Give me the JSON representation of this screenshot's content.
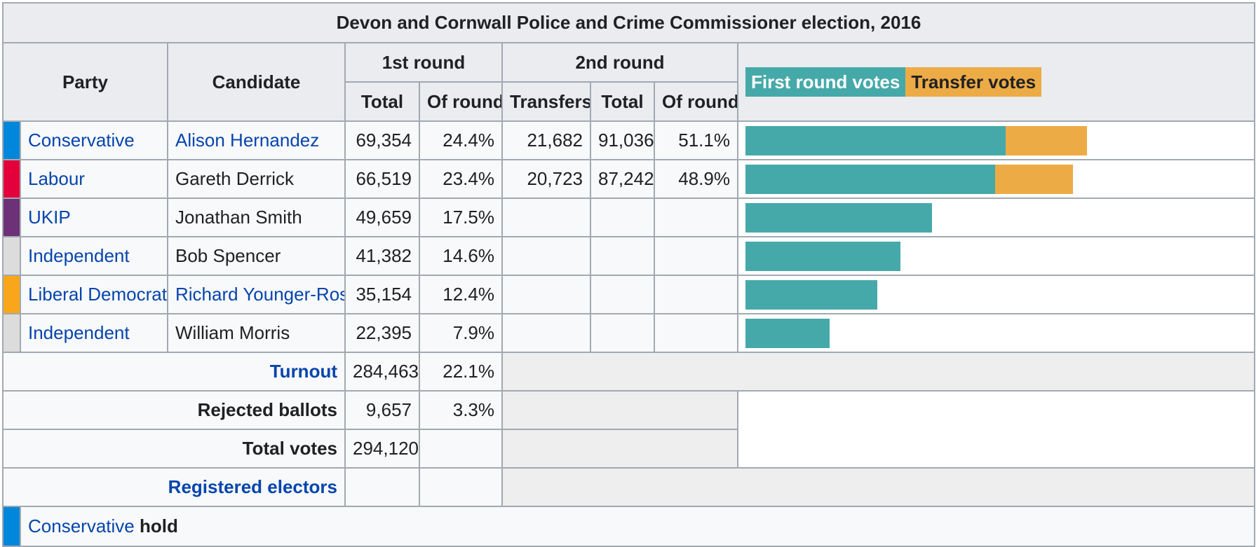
{
  "title": "Devon and Cornwall Police and Crime Commissioner election, 2016",
  "headers": {
    "party": "Party",
    "candidate": "Candidate",
    "round1": "1st round",
    "round2": "2nd round",
    "total": "Total",
    "of_round": "Of round",
    "transfers": "Transfers",
    "total2": "Total",
    "of_round2": "Of round"
  },
  "legend": {
    "first": "First round votes",
    "transfer": "Transfer votes"
  },
  "colors": {
    "first_bar": "#46a9a9",
    "transfer_bar": "#edab46"
  },
  "bar_scale_max": 91036,
  "rows": [
    {
      "color": "#0087dc",
      "party": "Conservative",
      "party_link": true,
      "candidate": "Alison Hernandez",
      "candidate_link": true,
      "r1_total": "69,354",
      "r1_pct": "24.4%",
      "transfers": "21,682",
      "r2_total": "91,036",
      "r2_pct": "51.1%",
      "first_votes": 69354,
      "transfer_votes": 21682
    },
    {
      "color": "#e4003b",
      "party": "Labour",
      "party_link": true,
      "candidate": "Gareth Derrick",
      "candidate_link": false,
      "r1_total": "66,519",
      "r1_pct": "23.4%",
      "transfers": "20,723",
      "r2_total": "87,242",
      "r2_pct": "48.9%",
      "first_votes": 66519,
      "transfer_votes": 20723
    },
    {
      "color": "#6d3177",
      "party": "UKIP",
      "party_link": true,
      "candidate": "Jonathan Smith",
      "candidate_link": false,
      "r1_total": "49,659",
      "r1_pct": "17.5%",
      "transfers": "",
      "r2_total": "",
      "r2_pct": "",
      "first_votes": 49659,
      "transfer_votes": 0
    },
    {
      "color": "#dcdcdc",
      "party": "Independent",
      "party_link": true,
      "candidate": "Bob Spencer",
      "candidate_link": false,
      "r1_total": "41,382",
      "r1_pct": "14.6%",
      "transfers": "",
      "r2_total": "",
      "r2_pct": "",
      "first_votes": 41382,
      "transfer_votes": 0
    },
    {
      "color": "#faa61a",
      "party": "Liberal Democrats",
      "party_link": true,
      "candidate": "Richard Younger-Ross",
      "candidate_link": true,
      "r1_total": "35,154",
      "r1_pct": "12.4%",
      "transfers": "",
      "r2_total": "",
      "r2_pct": "",
      "first_votes": 35154,
      "transfer_votes": 0
    },
    {
      "color": "#dcdcdc",
      "party": "Independent",
      "party_link": true,
      "candidate": "William Morris",
      "candidate_link": false,
      "r1_total": "22,395",
      "r1_pct": "7.9%",
      "transfers": "",
      "r2_total": "",
      "r2_pct": "",
      "first_votes": 22395,
      "transfer_votes": 0
    }
  ],
  "turnout": {
    "label": "Turnout",
    "total": "284,463",
    "pct": "22.1%"
  },
  "rejected": {
    "label": "Rejected ballots",
    "total": "9,657",
    "pct": "3.3%"
  },
  "total_votes": {
    "label": "Total votes",
    "total": "294,120"
  },
  "registered": {
    "label": "Registered electors"
  },
  "result": {
    "color": "#0087dc",
    "party": "Conservative",
    "word": "hold"
  }
}
